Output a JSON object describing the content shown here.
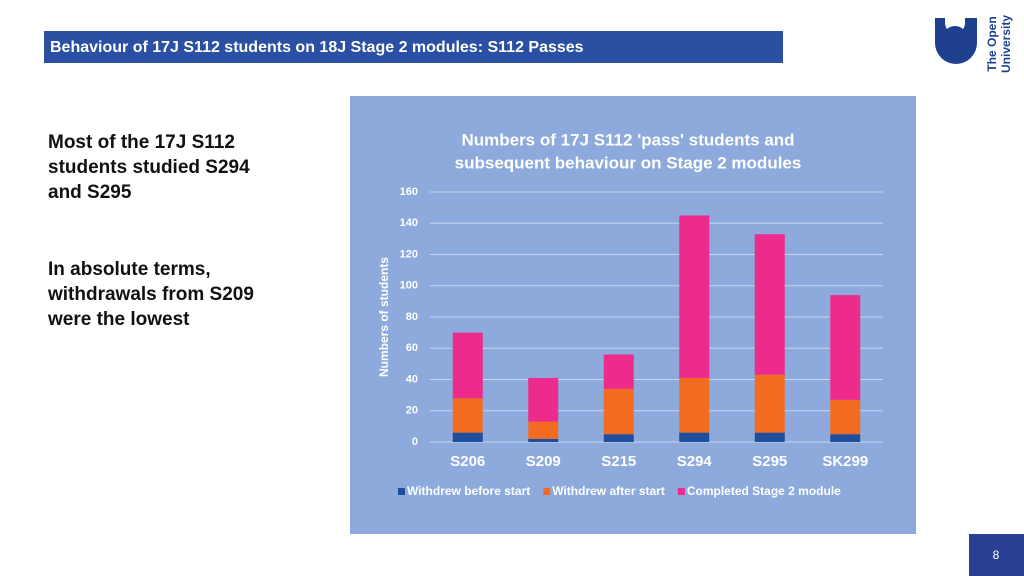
{
  "header": {
    "title": "Behaviour of 17J S112 students on 18J Stage 2 modules: S112 Passes"
  },
  "logo": {
    "lines": [
      "The Open",
      "University"
    ]
  },
  "body": {
    "paragraphs": [
      {
        "lines": [
          "Most of the 17J S112",
          "students studied S294",
          "and S295"
        ]
      },
      {
        "lines": [
          "In absolute terms,",
          "withdrawals from S209",
          "were the lowest"
        ]
      }
    ]
  },
  "page_number": "8",
  "chart_data": {
    "type": "stacked-bar",
    "title_lines": [
      "Numbers of 17J S112 'pass' students and",
      "subsequent behaviour on Stage 2  modules"
    ],
    "y_label": "Numbers of students",
    "categories": [
      "S206",
      "S209",
      "S215",
      "S294",
      "S295",
      "SK299"
    ],
    "series": [
      {
        "name": "Withdrew before start",
        "color": "#1f4e9c",
        "values": [
          6,
          2,
          5,
          6,
          6,
          5
        ]
      },
      {
        "name": "Withdrew after start",
        "color": "#f26b21",
        "values": [
          22,
          11,
          29,
          35,
          37,
          22
        ]
      },
      {
        "name": "Completed Stage 2 module",
        "color": "#ec2b8c",
        "values": [
          42,
          28,
          22,
          104,
          90,
          67
        ]
      }
    ],
    "ylim": [
      0,
      160
    ],
    "yticks": [
      0,
      20,
      40,
      60,
      80,
      100,
      120,
      140,
      160
    ],
    "grid": true,
    "legend": "bottom"
  }
}
